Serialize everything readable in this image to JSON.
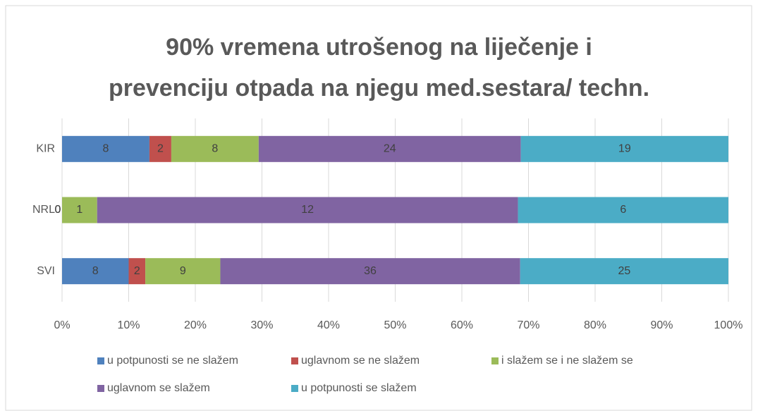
{
  "chart_data": {
    "type": "bar",
    "orientation": "horizontal",
    "stacking": "percent",
    "title": "90% vremena utrošenog na liječenje i\nprevenciju otpada na njegu med.sestara/ techn.",
    "categories": [
      "KIR",
      "NRL",
      "SVI"
    ],
    "series": [
      {
        "name": "u potpunosti se ne slažem",
        "color": "#4f81bd",
        "values": [
          8,
          0,
          8
        ]
      },
      {
        "name": "uglavnom se ne slažem",
        "color": "#c0504d",
        "values": [
          2,
          0,
          2
        ]
      },
      {
        "name": "i slažem se i ne slažem se",
        "color": "#9bbb59",
        "values": [
          8,
          1,
          9
        ]
      },
      {
        "name": "uglavnom se slažem",
        "color": "#8064a2",
        "values": [
          24,
          12,
          36
        ]
      },
      {
        "name": "u potpunosti se slažem",
        "color": "#4bacc6",
        "values": [
          19,
          6,
          25
        ]
      }
    ],
    "xlim": [
      0,
      100
    ],
    "xticks": [
      {
        "value": 0,
        "label": "0%"
      },
      {
        "value": 10,
        "label": "10%"
      },
      {
        "value": 20,
        "label": "20%"
      },
      {
        "value": 30,
        "label": "30%"
      },
      {
        "value": 40,
        "label": "40%"
      },
      {
        "value": 50,
        "label": "50%"
      },
      {
        "value": 60,
        "label": "60%"
      },
      {
        "value": 70,
        "label": "70%"
      },
      {
        "value": 80,
        "label": "80%"
      },
      {
        "value": 90,
        "label": "90%"
      },
      {
        "value": 100,
        "label": "100%"
      }
    ],
    "grid": true,
    "legend": "bottom"
  }
}
